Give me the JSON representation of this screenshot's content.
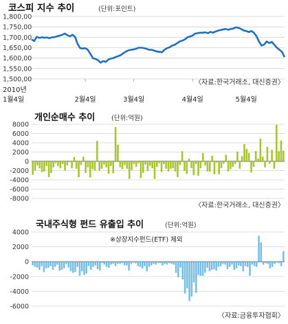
{
  "chart_data": [
    {
      "type": "line",
      "title": "코스피 지수 추이",
      "unit": "(단위:포인트)",
      "source": "〈자료:한국거래소, 대신증권〉",
      "yticks": [
        "1,800,00",
        "1,750,00",
        "1,700,00",
        "1,650,00",
        "1,600,00",
        "1,550,00",
        "1,500,00"
      ],
      "ylim": [
        1500,
        1800
      ],
      "x_date_labels": [
        "2010년\n1월4일",
        "2월4일",
        "3월4일",
        "4월4일",
        "5월4일"
      ],
      "color": "#1f6fc0",
      "values": [
        1690,
        1682,
        1702,
        1697,
        1700,
        1698,
        1699,
        1696,
        1700,
        1701,
        1705,
        1708,
        1712,
        1718,
        1710,
        1705,
        1712,
        1702,
        1668,
        1648,
        1646,
        1648,
        1640,
        1620,
        1600,
        1596,
        1590,
        1578,
        1586,
        1582,
        1593,
        1598,
        1600,
        1606,
        1610,
        1615,
        1625,
        1632,
        1638,
        1640,
        1642,
        1646,
        1650,
        1650,
        1648,
        1645,
        1640,
        1640,
        1636,
        1632,
        1630,
        1628,
        1640,
        1648,
        1652,
        1660,
        1664,
        1672,
        1680,
        1684,
        1690,
        1700,
        1704,
        1708,
        1718,
        1720,
        1722,
        1722,
        1724,
        1720,
        1726,
        1722,
        1728,
        1732,
        1735,
        1738,
        1740,
        1736,
        1740,
        1742,
        1748,
        1745,
        1740,
        1733,
        1730,
        1725,
        1730,
        1722,
        1705,
        1680,
        1660,
        1665,
        1680,
        1672,
        1678,
        1664,
        1650,
        1640,
        1630,
        1605
      ]
    },
    {
      "type": "bar",
      "title": "개인순매수 추이",
      "unit": "(단위:억원)",
      "source": "〈자료:한국거래소, 대신증권〉",
      "yticks": [
        "8000",
        "6000",
        "4000",
        "2000",
        "0",
        "-2000",
        "-4000",
        "-6000",
        "-8000"
      ],
      "ylim": [
        -8000,
        8000
      ],
      "color": "#a6c531",
      "values": [
        -2900,
        -2000,
        -900,
        -1500,
        -2300,
        -2200,
        -1000,
        -3400,
        -2500,
        -1300,
        -400,
        -1000,
        -1500,
        -600,
        -2000,
        -900,
        -200,
        -1500,
        900,
        -1600,
        -3400,
        -800,
        1000,
        -2500,
        -1300,
        -3500,
        -1700,
        -2000,
        4400,
        -2000,
        -1600,
        -700,
        -1300,
        -2700,
        -1000,
        -2600,
        7400,
        3600,
        -1300,
        -1700,
        -800,
        -1600,
        -3800,
        -1900,
        -600,
        -1200,
        -400,
        -3600,
        -2500,
        -700,
        -2100,
        -1000,
        -1500,
        -3800,
        -1200,
        -400,
        -2300,
        -600,
        -1600,
        -2200,
        -1600,
        -1500,
        -2200,
        -3400,
        -800,
        2200,
        -2100,
        -2700,
        600,
        -1500,
        -3000,
        -600,
        -3100,
        -1500,
        1800,
        -900,
        -2200,
        -2200,
        1200,
        -2800,
        -300,
        -2800,
        -1500,
        -500,
        1400,
        -2200,
        -1700,
        -1200,
        -600,
        2100,
        -1600,
        1100,
        3700,
        2700,
        1800,
        -2400,
        -1200,
        2200,
        600,
        4900,
        1000,
        -1300,
        3100,
        -500,
        2500,
        -1600,
        7900,
        2200,
        4500,
        2300
      ]
    },
    {
      "type": "bar",
      "title": "국내주식형 펀드 유출입 추이",
      "unit": "(단위:억원)",
      "note": "※상장지수펀드(ETF) 제외",
      "source": "〈자료:금융투자협회〉",
      "yticks": [
        "4000",
        "2000",
        "0",
        "-2000",
        "-4000",
        "-6000"
      ],
      "ylim": [
        -6000,
        4000
      ],
      "color": "#76bee4",
      "values": [
        -500,
        -700,
        -800,
        -1100,
        -600,
        -1400,
        -900,
        -800,
        -600,
        -1100,
        -700,
        -400,
        -1200,
        -1100,
        -900,
        -300,
        -800,
        -1300,
        -1500,
        -1400,
        -700,
        -1900,
        -1300,
        -1800,
        -1600,
        -600,
        -1100,
        -700,
        -500,
        -1000,
        -1200,
        -200,
        -400,
        -700,
        -800,
        -400,
        -300,
        -600,
        -300,
        -300,
        -200,
        -500,
        -500,
        -1200,
        -300,
        -100,
        -200,
        -600,
        -700,
        -900,
        -600,
        -1300,
        -700,
        -500,
        -300,
        -400,
        -200,
        -200,
        -500,
        -300,
        -400,
        -200,
        -300,
        -400,
        -1500,
        -2100,
        -800,
        -2400,
        -4300,
        -3600,
        -5300,
        -4700,
        -2800,
        -4200,
        -1800,
        -1900,
        -1900,
        -1500,
        -800,
        -1300,
        -1100,
        -1000,
        -1200,
        -700,
        -600,
        -300,
        -400,
        -1000,
        -700,
        -400,
        -1100,
        -900,
        -500,
        -600,
        -1300,
        -600,
        -700,
        -1900,
        -400,
        -600,
        -700,
        3500,
        2600,
        -400,
        -200,
        -300,
        -900,
        -700,
        -300,
        -100,
        -200,
        -600,
        1400
      ]
    }
  ]
}
